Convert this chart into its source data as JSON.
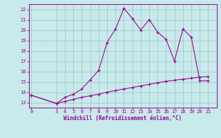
{
  "xlabel": "Windchill (Refroidissement éolien,°C)",
  "background_color": "#c8eaea",
  "grid_color": "#a0c8c8",
  "line_color": "#990099",
  "x_ticks": [
    0,
    3,
    4,
    5,
    6,
    7,
    8,
    9,
    10,
    11,
    12,
    13,
    14,
    15,
    16,
    17,
    18,
    19,
    20,
    21
  ],
  "ylim": [
    12.5,
    22.5
  ],
  "xlim": [
    -0.3,
    22.0
  ],
  "yticks": [
    13,
    14,
    15,
    16,
    17,
    18,
    19,
    20,
    21,
    22
  ],
  "curve1_x": [
    0,
    3,
    4,
    5,
    6,
    7,
    8,
    9,
    10,
    11,
    12,
    13,
    14,
    15,
    16,
    17,
    18,
    19,
    20,
    21
  ],
  "curve1_y": [
    13.7,
    12.9,
    13.5,
    13.8,
    14.3,
    15.2,
    16.1,
    18.8,
    20.1,
    22.1,
    21.1,
    20.0,
    21.0,
    19.8,
    19.1,
    17.0,
    20.1,
    19.3,
    15.1,
    15.1
  ],
  "curve2_x": [
    0,
    3,
    4,
    5,
    6,
    7,
    8,
    9,
    10,
    11,
    12,
    13,
    14,
    15,
    16,
    17,
    18,
    19,
    20,
    21
  ],
  "curve2_y": [
    13.7,
    12.9,
    13.1,
    13.3,
    13.5,
    13.65,
    13.8,
    14.0,
    14.15,
    14.3,
    14.45,
    14.6,
    14.75,
    14.9,
    15.05,
    15.15,
    15.25,
    15.35,
    15.45,
    15.5
  ],
  "tick_fontsize": 5.0,
  "xlabel_fontsize": 5.5
}
